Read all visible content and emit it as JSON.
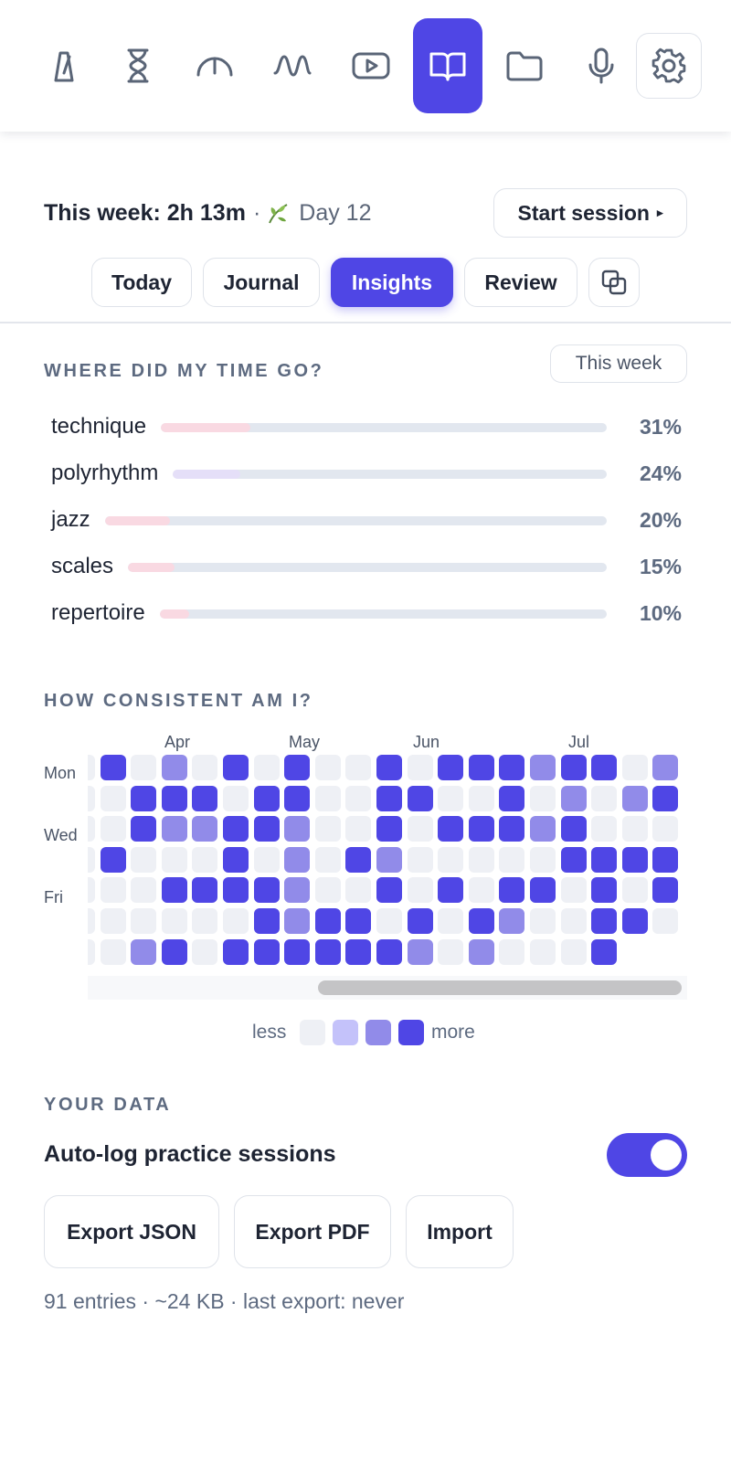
{
  "toolbar": {
    "tools": [
      {
        "icon": "metronome-icon",
        "active": false
      },
      {
        "icon": "hourglass-icon",
        "active": false
      },
      {
        "icon": "tuner-gauge-icon",
        "active": false
      },
      {
        "icon": "waveform-icon",
        "active": false
      },
      {
        "icon": "video-play-icon",
        "active": false
      },
      {
        "icon": "open-book-icon",
        "active": true
      },
      {
        "icon": "folder-icon",
        "active": false
      },
      {
        "icon": "microphone-icon",
        "active": false
      },
      {
        "icon": "gear-icon",
        "active": false
      }
    ]
  },
  "status": {
    "week_label": "This week: 2h 13m",
    "separator": "·",
    "streak_icon": "leaf-icon",
    "streak_text": "Day 12",
    "start_button": "Start session",
    "start_button_icon": "▸"
  },
  "tabs": [
    {
      "label": "Today",
      "active": false
    },
    {
      "label": "Journal",
      "active": false
    },
    {
      "label": "Insights",
      "active": true
    },
    {
      "label": "Review",
      "active": false
    }
  ],
  "tabs_extra_icon": "duplicate-window-icon",
  "time_section": {
    "title": "WHERE DID MY TIME GO?",
    "period": "This week",
    "items": [
      {
        "label": "technique",
        "percent": 31,
        "value_text": "31%",
        "color": "#f9d9e2"
      },
      {
        "label": "polyrhythm",
        "percent": 24,
        "value_text": "24%",
        "color": "#e5dff8"
      },
      {
        "label": "jazz",
        "percent": 20,
        "value_text": "20%",
        "color": "#f9d9e2"
      },
      {
        "label": "scales",
        "percent": 15,
        "value_text": "15%",
        "color": "#f9d9e2"
      },
      {
        "label": "repertoire",
        "percent": 10,
        "value_text": "10%",
        "color": "#f9d9e2"
      }
    ]
  },
  "consistency": {
    "title": "HOW CONSISTENT AM I?",
    "day_labels": [
      "Mon",
      "Wed",
      "Fri"
    ],
    "months": [
      "Apr",
      "May",
      "Jun",
      "Jul"
    ],
    "levels": [
      "#eef0f5",
      "#c4c2fa",
      "#918be9",
      "#4f46e5"
    ],
    "weeks": [
      [
        0,
        0,
        0,
        0,
        0,
        0,
        0
      ],
      [
        3,
        0,
        0,
        3,
        0,
        0,
        0
      ],
      [
        0,
        3,
        3,
        0,
        0,
        0,
        2
      ],
      [
        2,
        3,
        2,
        0,
        3,
        0,
        3
      ],
      [
        0,
        3,
        2,
        0,
        3,
        0,
        0
      ],
      [
        3,
        0,
        3,
        3,
        3,
        0,
        3
      ],
      [
        0,
        3,
        3,
        0,
        3,
        3,
        3
      ],
      [
        3,
        3,
        2,
        2,
        2,
        2,
        3
      ],
      [
        0,
        0,
        0,
        0,
        0,
        3,
        3
      ],
      [
        0,
        0,
        0,
        3,
        0,
        3,
        3
      ],
      [
        3,
        3,
        3,
        2,
        3,
        0,
        3
      ],
      [
        0,
        3,
        0,
        0,
        0,
        3,
        2
      ],
      [
        3,
        0,
        3,
        0,
        3,
        0,
        0
      ],
      [
        3,
        0,
        3,
        0,
        0,
        3,
        2
      ],
      [
        3,
        3,
        3,
        0,
        3,
        2,
        0
      ],
      [
        2,
        0,
        2,
        0,
        3,
        0,
        0
      ],
      [
        3,
        2,
        3,
        3,
        0,
        0,
        0
      ],
      [
        3,
        0,
        0,
        3,
        3,
        3,
        3
      ],
      [
        0,
        2,
        0,
        3,
        0,
        3,
        0
      ],
      [
        2,
        3,
        0,
        3,
        3,
        0,
        0
      ]
    ],
    "legend_less": "less",
    "legend_more": "more"
  },
  "your_data": {
    "title": "YOUR DATA",
    "toggle_label": "Auto-log practice sessions",
    "toggle_on": true,
    "buttons": [
      "Export JSON",
      "Export PDF",
      "Import"
    ],
    "footnote": "91 entries · ~24 KB · last export: never"
  }
}
